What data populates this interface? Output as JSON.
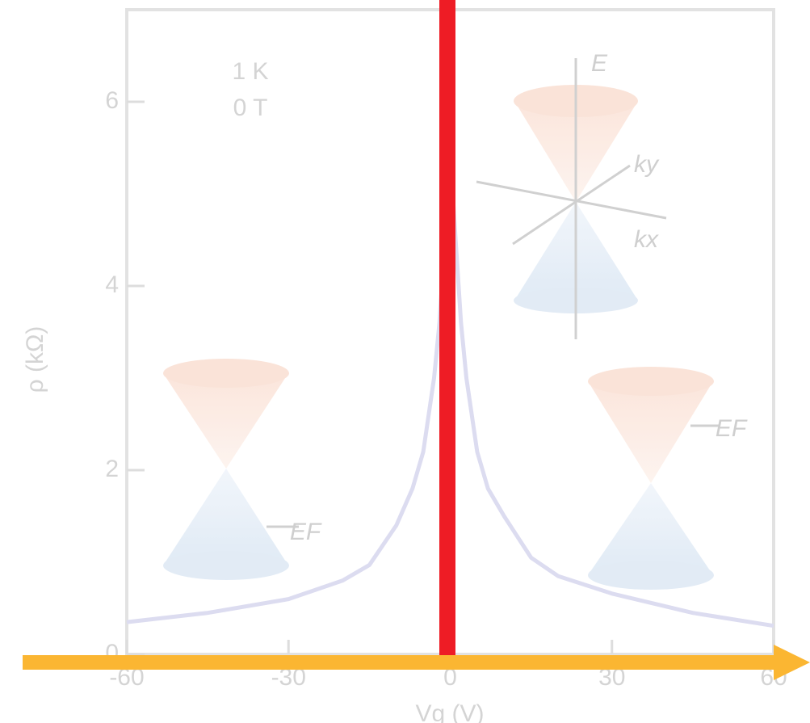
{
  "chart_data": {
    "type": "line",
    "x_label": "Vg (V)",
    "y_label": "ρ (kΩ)",
    "annotations": [
      "1 K",
      "0 T",
      "E",
      "ky",
      "kx",
      "EF",
      "EF"
    ],
    "x": [
      -60,
      -45,
      -30,
      -20,
      -15,
      -10,
      -7,
      -5,
      -3,
      -2,
      -1,
      0,
      1,
      2,
      3,
      5,
      7,
      10,
      15,
      20,
      30,
      45,
      60
    ],
    "series": [
      {
        "name": "ρ",
        "color": "#dcdcf0",
        "values": [
          0.35,
          0.45,
          0.6,
          0.8,
          0.97,
          1.4,
          1.8,
          2.2,
          3.0,
          3.6,
          4.5,
          5.45,
          4.5,
          3.6,
          3.0,
          2.2,
          1.8,
          1.5,
          1.05,
          0.85,
          0.66,
          0.45,
          0.31
        ]
      }
    ],
    "xlim": [
      -60,
      60
    ],
    "ylim": [
      0,
      7
    ],
    "xticks": [
      -60,
      -30,
      0,
      30,
      60
    ],
    "yticks": [
      0,
      2,
      4,
      6
    ]
  }
}
